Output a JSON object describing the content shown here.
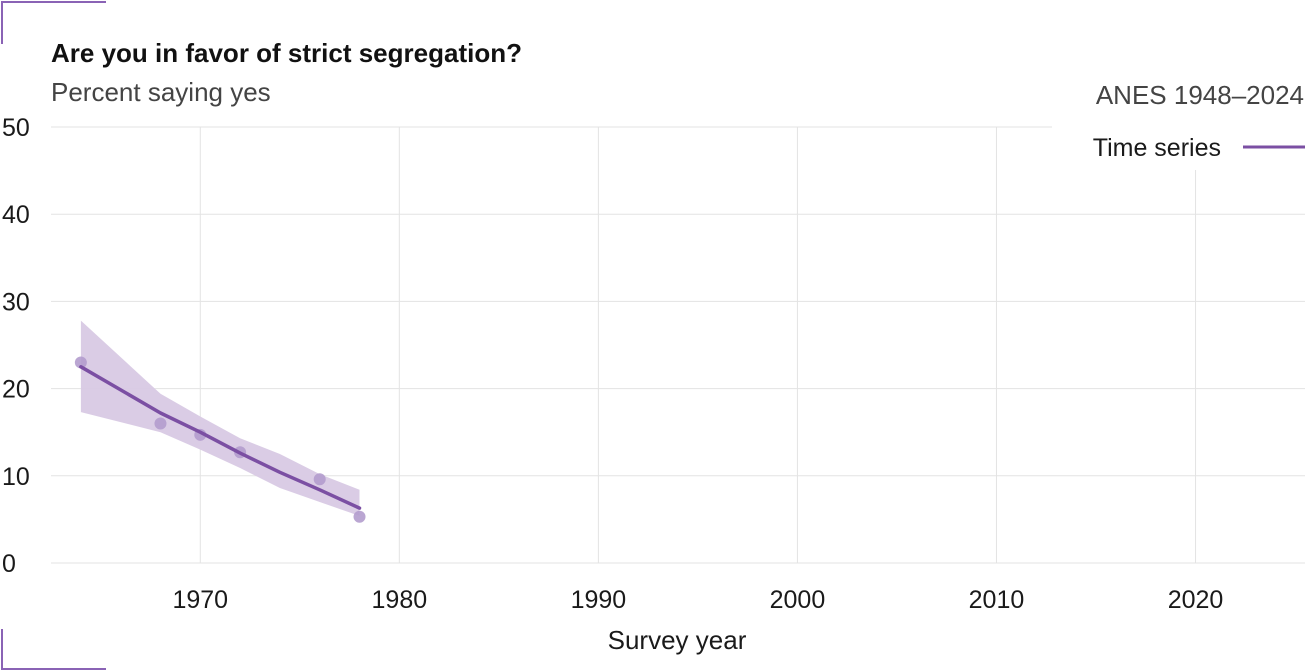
{
  "colors": {
    "accent": "#7b4fa3",
    "band": "#d8c9e4",
    "points": "#b39ccd",
    "grid": "#e3e3e3",
    "frame": "#8a63b5"
  },
  "chart_data": {
    "type": "line",
    "title": "Are you in favor of strict segregation?",
    "subtitle": "Percent saying yes",
    "source": "ANES 1948–2024",
    "xlabel": "Survey year",
    "ylabel": "",
    "xlim": [
      1962.5,
      2025.5
    ],
    "ylim": [
      0,
      50
    ],
    "x_ticks": [
      1970,
      1980,
      1990,
      2000,
      2010,
      2020
    ],
    "y_ticks": [
      0,
      10,
      20,
      30,
      40,
      50
    ],
    "grid": true,
    "legend_position": "top-right",
    "series": [
      {
        "name": "Time series",
        "x": [
          1964,
          1968,
          1970,
          1972,
          1974,
          1976,
          1978
        ],
        "trend": [
          22.5,
          17.2,
          15.0,
          12.6,
          10.4,
          8.4,
          6.3
        ],
        "ci_low": [
          17.3,
          15.0,
          13.0,
          10.9,
          8.6,
          7.0,
          5.4
        ],
        "ci_high": [
          27.8,
          19.4,
          16.8,
          14.3,
          12.5,
          10.2,
          8.4
        ],
        "points_x": [
          1964,
          1968,
          1970,
          1972,
          1976,
          1978
        ],
        "points_y": [
          23.0,
          16.0,
          14.7,
          12.7,
          9.6,
          5.3
        ]
      }
    ]
  }
}
